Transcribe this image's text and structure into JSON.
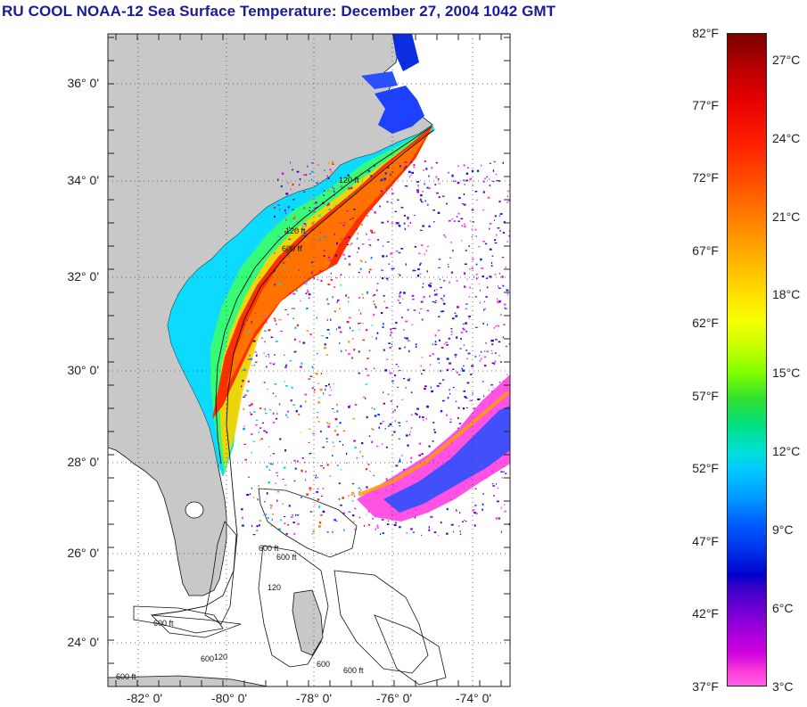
{
  "title": "RU COOL  NOAA-12  Sea Surface Temperature:  December 27, 2004 1042 GMT",
  "map": {
    "lat_labels": [
      "36° 0'",
      "34° 0'",
      "32° 0'",
      "30° 0'",
      "28° 0'",
      "26° 0'",
      "24° 0'"
    ],
    "lon_labels": [
      "-82° 0'",
      "-80° 0'",
      "-78° 0'",
      "-76° 0'",
      "-74° 0'"
    ],
    "isobath_labels": [
      "120 ft",
      "600 ft",
      "120 ft",
      "600 ft",
      "120",
      "600",
      "600 ft",
      "600 ft",
      "120",
      "600 ft",
      "600 ft",
      "600"
    ],
    "colors": {
      "land": "#c8c8c8",
      "ocean": "#ffffff",
      "grid": "#444444"
    }
  },
  "colorbar": {
    "fahrenheit_labels": [
      "82°F",
      "77°F",
      "72°F",
      "67°F",
      "62°F",
      "57°F",
      "52°F",
      "47°F",
      "42°F",
      "37°F"
    ],
    "celsius_labels": [
      "27°C",
      "24°C",
      "21°C",
      "18°C",
      "15°C",
      "12°C",
      "9°C",
      "6°C",
      "3°C"
    ]
  }
}
